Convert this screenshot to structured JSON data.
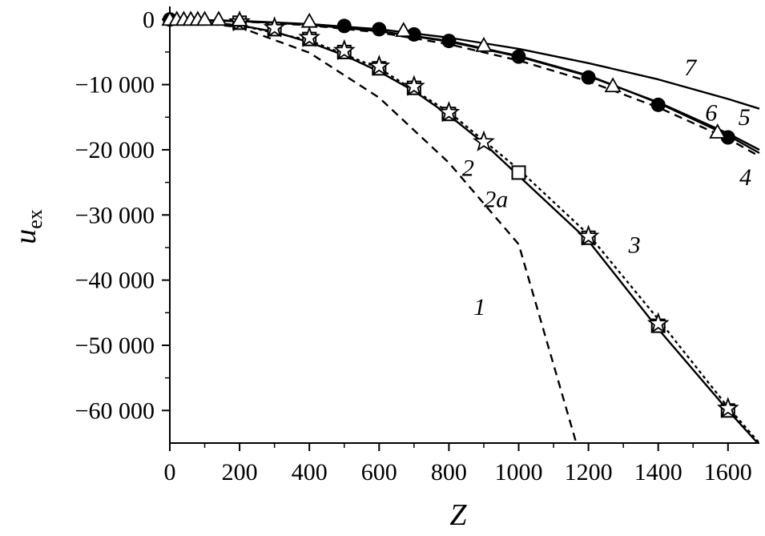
{
  "chart_data": {
    "type": "line",
    "xlabel": "Z",
    "ylabel_main": "u",
    "ylabel_sub": "ex",
    "xlim": [
      0,
      1690
    ],
    "ylim": [
      -65000,
      2000
    ],
    "xticks": [
      0,
      200,
      400,
      600,
      800,
      1000,
      1200,
      1400,
      1600
    ],
    "xtick_labels": [
      "0",
      "200",
      "400",
      "600",
      "800",
      "1000",
      "1200",
      "1400",
      "1600"
    ],
    "yticks": [
      0,
      -10000,
      -20000,
      -30000,
      -40000,
      -50000,
      -60000
    ],
    "ytick_labels": [
      "0",
      "−10 000",
      "−20 000",
      "−30 000",
      "−40 000",
      "−50 000",
      "−60 000"
    ],
    "series": [
      {
        "name": "1",
        "line": "dashed",
        "x": [
          0,
          200,
          400,
          600,
          800,
          1000,
          1165
        ],
        "y": [
          0,
          -1200,
          -5100,
          -12000,
          -22000,
          -34500,
          -65000
        ]
      },
      {
        "name": "2",
        "line": "solid",
        "x": [
          0,
          200,
          300,
          400,
          500,
          600,
          700,
          800,
          900,
          1000,
          1200,
          1400,
          1600,
          1685
        ],
        "y": [
          0,
          -900,
          -1900,
          -3500,
          -5500,
          -8000,
          -11000,
          -14700,
          -19000,
          -24000,
          -34000,
          -47500,
          -60000,
          -65000
        ]
      },
      {
        "name": "3",
        "line": "dotted",
        "x": [
          0,
          200,
          400,
          600,
          800,
          1000,
          1200,
          1400,
          1600,
          1690
        ],
        "y": [
          0,
          -900,
          -3200,
          -7500,
          -14200,
          -23000,
          -33000,
          -46000,
          -59500,
          -65000
        ]
      },
      {
        "name": "4",
        "line": "dashed",
        "x": [
          0,
          200,
          400,
          600,
          800,
          1000,
          1200,
          1400,
          1600,
          1690
        ],
        "y": [
          0,
          -300,
          -900,
          -2000,
          -3800,
          -6300,
          -9500,
          -13500,
          -18300,
          -21000
        ]
      },
      {
        "name": "5",
        "line": "solid",
        "x": [
          0,
          200,
          400,
          600,
          800,
          1000,
          1200,
          1400,
          1600,
          1690
        ],
        "y": [
          0,
          -250,
          -800,
          -1800,
          -3400,
          -5700,
          -8700,
          -12700,
          -17500,
          -20000
        ]
      },
      {
        "name": "6",
        "line": "solid",
        "x": [
          0,
          200,
          400,
          600,
          800,
          1000,
          1200,
          1400,
          1600,
          1690
        ],
        "y": [
          0,
          -250,
          -800,
          -1800,
          -3300,
          -5600,
          -8600,
          -12800,
          -17800,
          -20500
        ]
      },
      {
        "name": "7",
        "line": "solid",
        "x": [
          0,
          200,
          400,
          600,
          800,
          1000,
          1200,
          1400,
          1600,
          1690
        ],
        "y": [
          0,
          -200,
          -700,
          -1500,
          -2800,
          -4500,
          -6700,
          -9200,
          -12200,
          -13700
        ]
      }
    ],
    "markers": [
      {
        "shape": "square",
        "x": [
          200,
          300,
          400,
          500,
          600,
          700,
          800,
          1000,
          1200,
          1400,
          1600
        ],
        "y": [
          -500,
          -1500,
          -3000,
          -5000,
          -7500,
          -10500,
          -14500,
          -23500,
          -33500,
          -47000,
          -60000
        ]
      },
      {
        "shape": "star",
        "x": [
          200,
          300,
          400,
          500,
          600,
          700,
          800,
          900,
          1200,
          1400,
          1600
        ],
        "y": [
          -400,
          -1300,
          -2800,
          -4800,
          -7200,
          -10300,
          -14300,
          -18800,
          -33300,
          -46700,
          -59700
        ]
      },
      {
        "shape": "circle-filled",
        "x": [
          0,
          500,
          600,
          700,
          800,
          1000,
          1200,
          1400,
          1600
        ],
        "y": [
          0,
          -1000,
          -1500,
          -2300,
          -3300,
          -5700,
          -8900,
          -13100,
          -18100
        ]
      },
      {
        "shape": "triangle-open",
        "x": [
          0,
          20,
          40,
          60,
          80,
          100,
          140,
          200,
          400,
          670,
          900,
          1270,
          1570
        ],
        "y": [
          0,
          0,
          0,
          0,
          0,
          0,
          0,
          -100,
          -300,
          -1700,
          -4000,
          -10200,
          -17300
        ]
      }
    ],
    "curve_labels": [
      {
        "text": "1",
        "x": 888,
        "y": -45300
      },
      {
        "text": "2",
        "x": 855,
        "y": -24000
      },
      {
        "text": "2a",
        "x": 935,
        "y": -28800
      },
      {
        "text": "3",
        "x": 1332,
        "y": -35800
      },
      {
        "text": "4",
        "x": 1650,
        "y": -25400
      },
      {
        "text": "5",
        "x": 1647,
        "y": -16200
      },
      {
        "text": "6",
        "x": 1552,
        "y": -15500
      },
      {
        "text": "7",
        "x": 1492,
        "y": -8600
      }
    ]
  }
}
